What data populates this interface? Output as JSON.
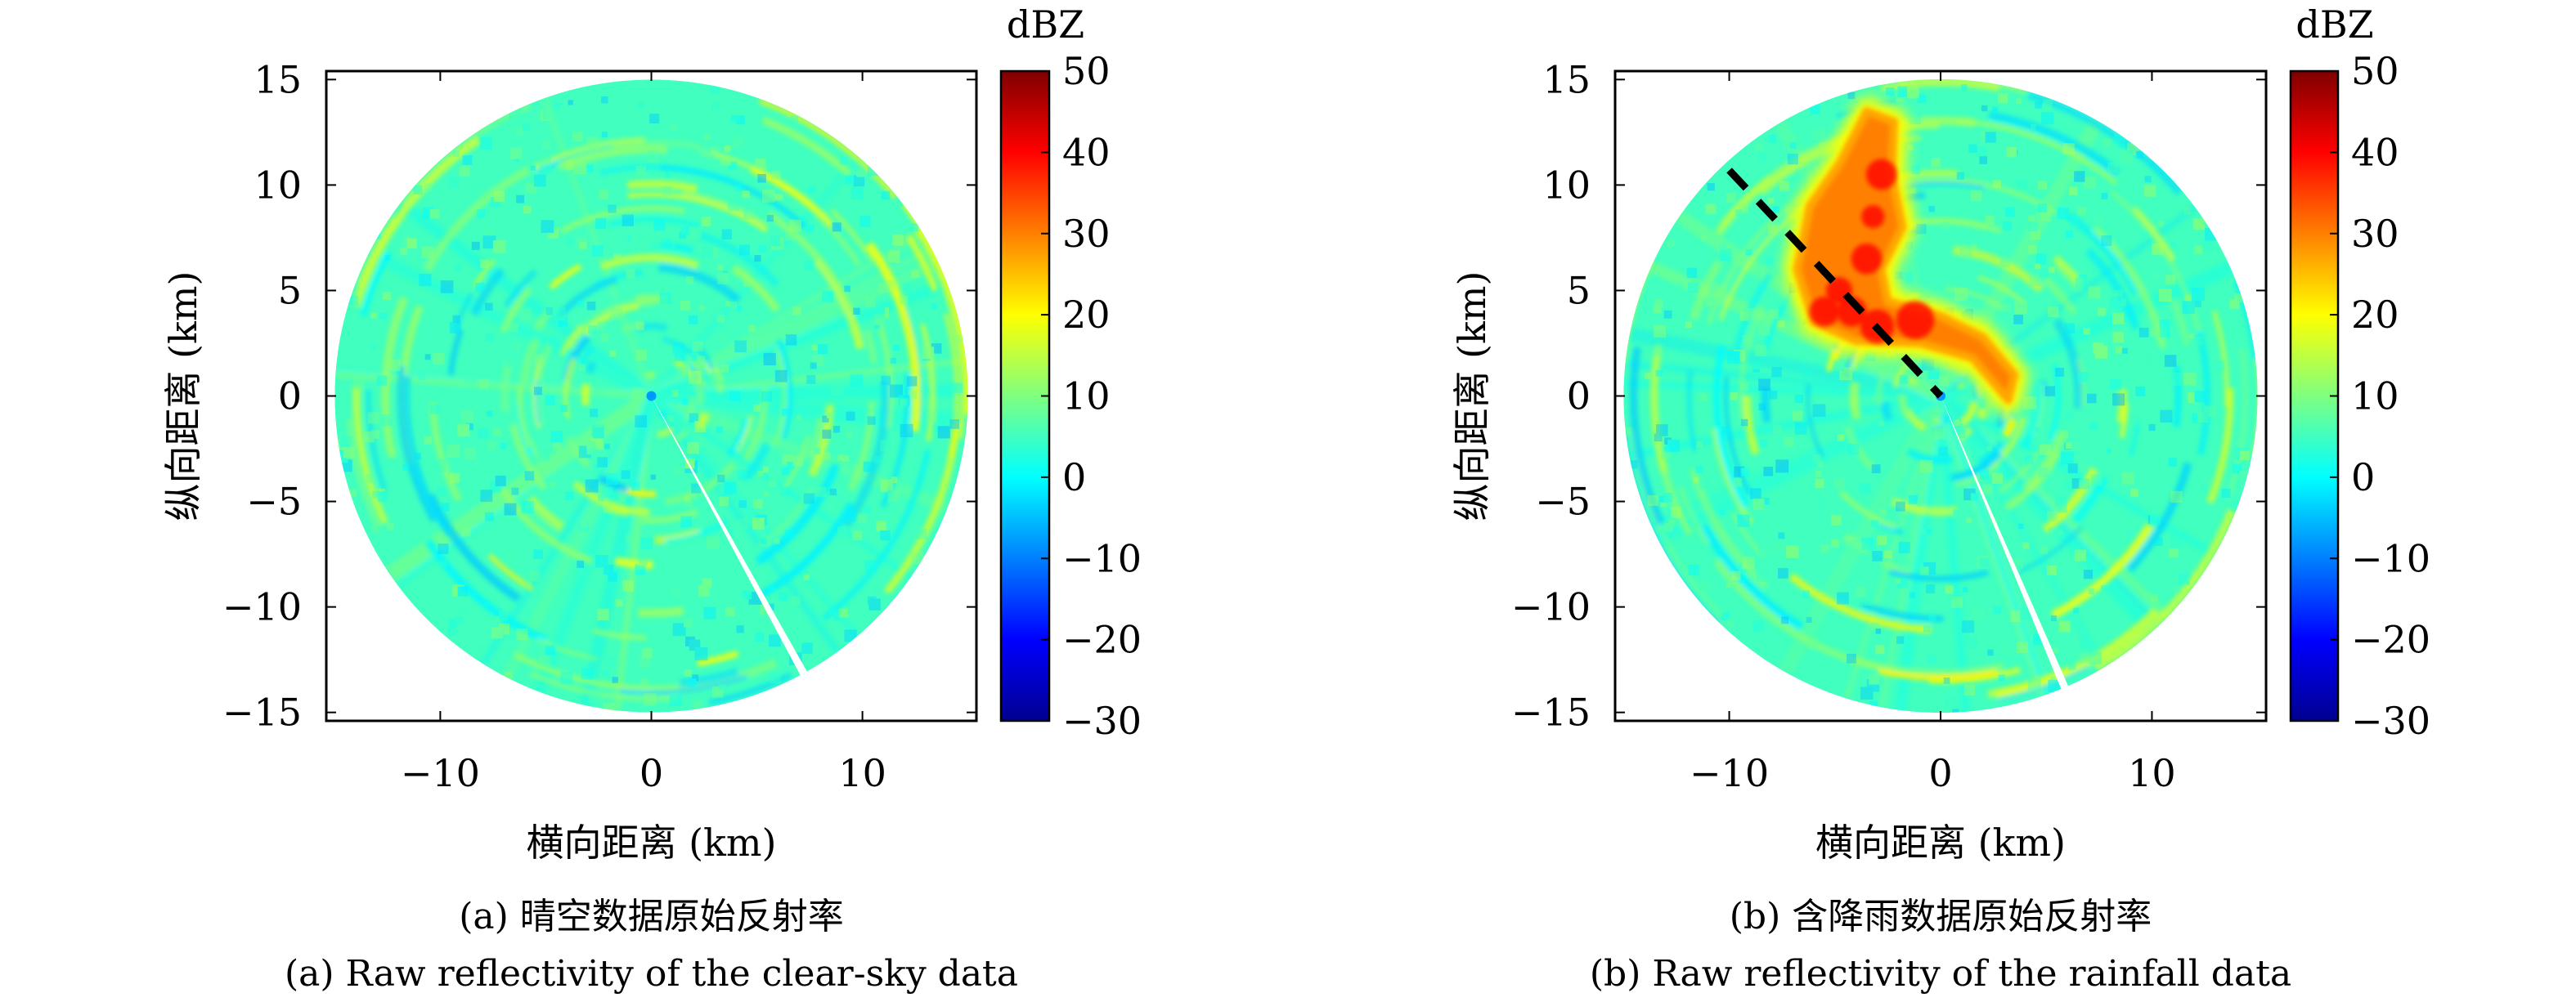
{
  "chart_data": [
    {
      "type": "heatmap",
      "subtype": "radar-ppi",
      "panel": "a",
      "caption_cn": "(a) 晴空数据原始反射率",
      "caption_en": "(a) Raw reflectivity of the clear-sky data",
      "xlabel": "横向距离 (km)",
      "ylabel": "纵向距离 (km)",
      "xlim": [
        -15.4,
        15.4
      ],
      "ylim": [
        -15.4,
        15.4
      ],
      "x_ticks": [
        -10,
        0,
        10
      ],
      "x_tick_labels": [
        "−10",
        "0",
        "10"
      ],
      "y_ticks": [
        15,
        10,
        5,
        0,
        -5,
        -10,
        -15
      ],
      "y_tick_labels": [
        "15",
        "10",
        "5",
        "0",
        "−5",
        "−10",
        "−15"
      ],
      "radar_range_km": 15,
      "blocked_sector_end_km": [
        7.3,
        -13.3
      ],
      "background_dbz": 5,
      "features": "clear-sky clutter rings, values mostly -5 to 20 dBZ",
      "colorbar": {
        "label": "dBZ",
        "range": [
          -30,
          50
        ],
        "ticks": [
          50,
          40,
          30,
          20,
          10,
          0,
          -10,
          -20,
          -30
        ],
        "tick_labels": [
          "50",
          "40",
          "30",
          "20",
          "10",
          "0",
          "−10",
          "−20",
          "−30"
        ],
        "colormap": "jet"
      }
    },
    {
      "type": "heatmap",
      "subtype": "radar-ppi",
      "panel": "b",
      "caption_cn": "(b) 含降雨数据原始反射率",
      "caption_en": "(b) Raw reflectivity of the rainfall data",
      "xlabel": "横向距离 (km)",
      "ylabel": "纵向距离 (km)",
      "xlim": [
        -15.4,
        15.4
      ],
      "ylim": [
        -15.4,
        15.4
      ],
      "x_ticks": [
        -10,
        0,
        10
      ],
      "x_tick_labels": [
        "−10",
        "0",
        "10"
      ],
      "y_ticks": [
        15,
        10,
        5,
        0,
        -5,
        -10,
        -15
      ],
      "y_tick_labels": [
        "15",
        "10",
        "5",
        "0",
        "−5",
        "−10",
        "−15"
      ],
      "radar_range_km": 15,
      "blocked_sector_end_km": [
        6.0,
        -14.1
      ],
      "background_dbz": 5,
      "rain_cell": {
        "peak_dbz": 40,
        "outline_km": [
          [
            -3.5,
            13.5
          ],
          [
            -2.2,
            13
          ],
          [
            -2.3,
            10.5
          ],
          [
            -1.8,
            8
          ],
          [
            -2.8,
            6
          ],
          [
            -2.5,
            4.5
          ],
          [
            0,
            3.8
          ],
          [
            2,
            2.8
          ],
          [
            3.5,
            1
          ],
          [
            3.2,
            -0.2
          ],
          [
            1.5,
            1.8
          ],
          [
            -1,
            2.5
          ],
          [
            -4,
            2.6
          ],
          [
            -6,
            3.5
          ],
          [
            -6.8,
            6
          ],
          [
            -6.2,
            9
          ],
          [
            -4.8,
            11
          ]
        ]
      },
      "dashed_line_km": [
        [
          -10,
          10.7
        ],
        [
          0,
          0
        ]
      ],
      "colorbar": {
        "label": "dBZ",
        "range": [
          -30,
          50
        ],
        "ticks": [
          50,
          40,
          30,
          20,
          10,
          0,
          -10,
          -20,
          -30
        ],
        "tick_labels": [
          "50",
          "40",
          "30",
          "20",
          "10",
          "0",
          "−10",
          "−20",
          "−30"
        ],
        "colormap": "jet"
      }
    }
  ],
  "colors": {
    "background_field": "#40f0c8",
    "axis": "#000000",
    "dashed_line": "#000000"
  }
}
